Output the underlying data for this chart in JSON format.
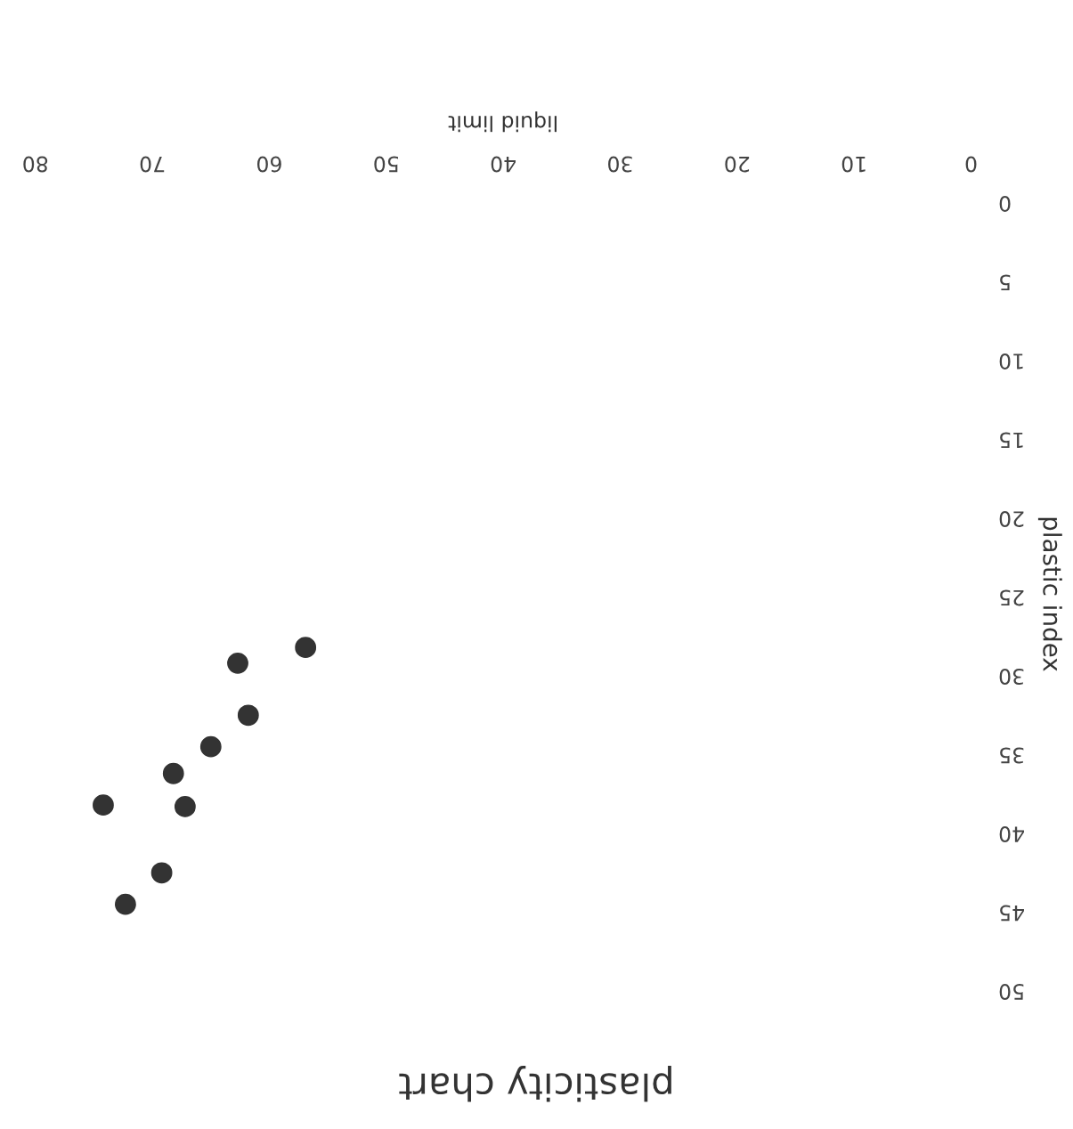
{
  "chart_data": {
    "type": "scatter",
    "title": "plasticity chart",
    "xlabel": "liquid limit",
    "ylabel": "plastic index",
    "x": [
      56.9,
      62.7,
      61.8,
      65.0,
      68.2,
      67.2,
      74.2,
      69.2,
      72.3
    ],
    "series": [
      {
        "color": "#333333",
        "values": [
          28.4,
          29.4,
          32.7,
          34.7,
          36.4,
          38.5,
          38.4,
          42.7,
          44.7
        ]
      }
    ],
    "xlim": [
      80,
      0
    ],
    "ylim": [
      50,
      0
    ],
    "xticks": [
      0,
      10,
      20,
      30,
      40,
      50,
      60,
      70,
      80
    ],
    "yticks": [
      0,
      5,
      10,
      15,
      20,
      25,
      30,
      35,
      40,
      45,
      50
    ],
    "marker": "circle",
    "grid": false,
    "legend": false
  }
}
